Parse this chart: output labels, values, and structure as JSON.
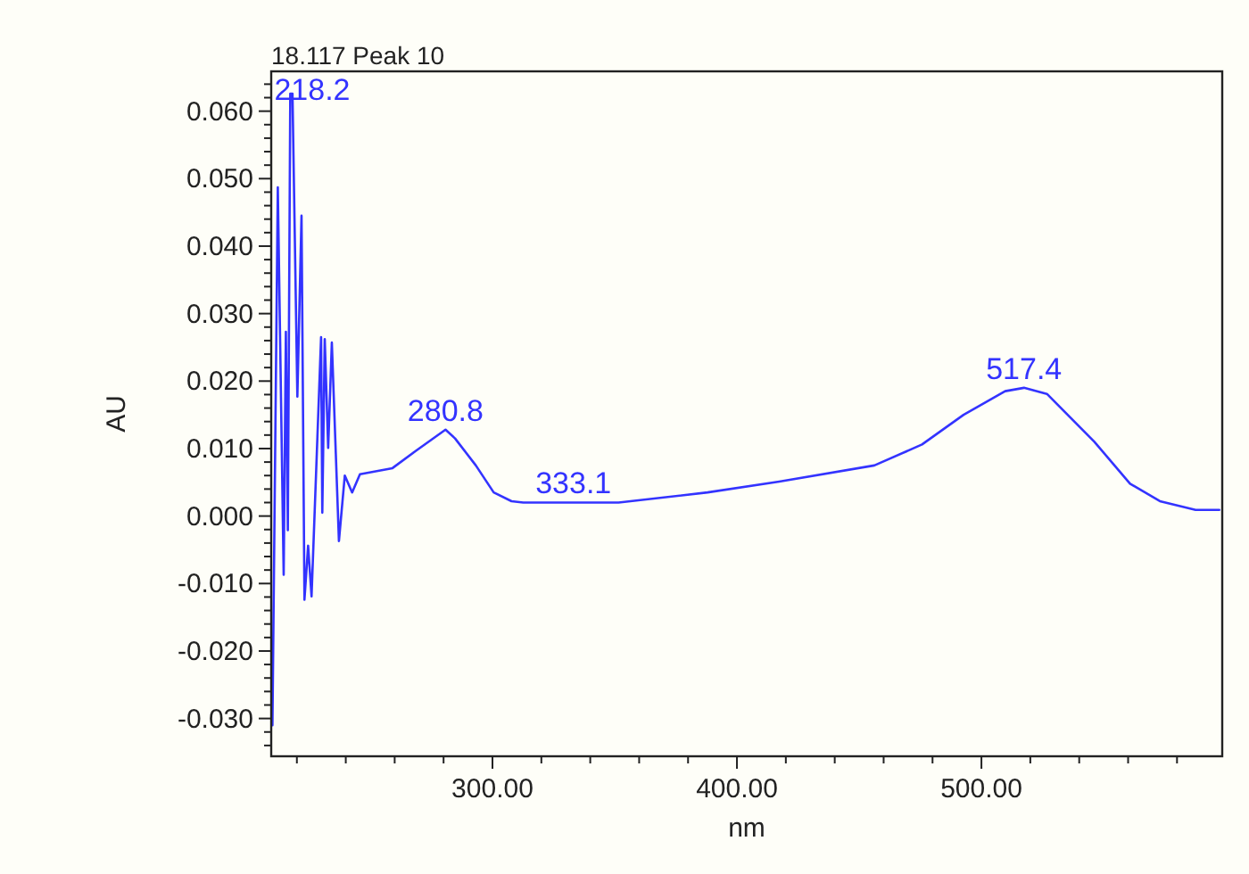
{
  "chart_data": {
    "type": "line",
    "title": "18.117 Peak 10",
    "xlabel": "nm",
    "ylabel": "AU",
    "series": [
      {
        "color": "#3333ff",
        "x": [
          210,
          212.2,
          214.6,
          215.5,
          216.3,
          217.3,
          218.2,
          220.2,
          221.9,
          223.1,
          224.6,
          226.0,
          229.9,
          230.4,
          231.4,
          232.8,
          234.3,
          237.2,
          239.6,
          242.6,
          245.8,
          259.1,
          268.8,
          280.8,
          284.7,
          293.2,
          300.5,
          307.8,
          312.6,
          333.1,
          351.6,
          388,
          417.3,
          456.2,
          475.7,
          492.7,
          509.7,
          517.4,
          526.8,
          546.2,
          560.8,
          573,
          587.6,
          597.3
        ],
        "values": [
          -0.031,
          0.0487,
          -0.0087,
          0.0273,
          -0.0021,
          0.0626,
          0.0626,
          0.0177,
          0.0445,
          -0.0124,
          -0.0044,
          -0.0119,
          0.0265,
          0.0005,
          0.0262,
          0.0101,
          0.0257,
          -0.0037,
          0.006,
          0.0035,
          0.0062,
          0.0071,
          0.0097,
          0.0128,
          0.0115,
          0.0075,
          0.0035,
          0.0022,
          0.002,
          0.002,
          0.002,
          0.0035,
          0.0051,
          0.0075,
          0.0106,
          0.015,
          0.0185,
          0.019,
          0.0181,
          0.011,
          0.0048,
          0.0022,
          0.0009,
          0.0009
        ]
      }
    ],
    "annotations": [
      {
        "text": "218.2",
        "x": 218.2,
        "y": 0.0626
      },
      {
        "text": "280.8",
        "x": 280.8,
        "y": 0.0128
      },
      {
        "text": "333.1",
        "x": 333.1,
        "y": 0.002
      },
      {
        "text": "517.4",
        "x": 517.4,
        "y": 0.019
      }
    ],
    "xlim": [
      209.5,
      598.5
    ],
    "xticks": [
      {
        "value": 300,
        "label": "300.00"
      },
      {
        "value": 400,
        "label": "400.00"
      },
      {
        "value": 500,
        "label": "500.00"
      },
      {
        "value": 220,
        "label": null
      },
      {
        "value": 240,
        "label": null
      },
      {
        "value": 260,
        "label": null
      },
      {
        "value": 280,
        "label": null
      },
      {
        "value": 320,
        "label": null
      },
      {
        "value": 340,
        "label": null
      },
      {
        "value": 360,
        "label": null
      },
      {
        "value": 380,
        "label": null
      },
      {
        "value": 420,
        "label": null
      },
      {
        "value": 440,
        "label": null
      },
      {
        "value": 460,
        "label": null
      },
      {
        "value": 480,
        "label": null
      },
      {
        "value": 520,
        "label": null
      },
      {
        "value": 540,
        "label": null
      },
      {
        "value": 560,
        "label": null
      },
      {
        "value": 580,
        "label": null
      }
    ],
    "ylim": [
      -0.0356,
      0.0659
    ],
    "yticks": [
      {
        "value": 0.06,
        "label": "0.060"
      },
      {
        "value": 0.05,
        "label": "0.050"
      },
      {
        "value": 0.04,
        "label": "0.040"
      },
      {
        "value": 0.03,
        "label": "0.030"
      },
      {
        "value": 0.02,
        "label": "0.020"
      },
      {
        "value": 0.01,
        "label": "0.010"
      },
      {
        "value": 0,
        "label": "0.000"
      },
      {
        "value": -0.01,
        "label": "-0.010"
      },
      {
        "value": -0.02,
        "label": "-0.020"
      },
      {
        "value": -0.03,
        "label": "-0.030"
      },
      {
        "value": -0.034,
        "label": null
      },
      {
        "value": -0.032,
        "label": null
      },
      {
        "value": -0.028,
        "label": null
      },
      {
        "value": -0.026,
        "label": null
      },
      {
        "value": -0.024,
        "label": null
      },
      {
        "value": -0.022,
        "label": null
      },
      {
        "value": -0.018,
        "label": null
      },
      {
        "value": -0.016,
        "label": null
      },
      {
        "value": -0.014,
        "label": null
      },
      {
        "value": -0.012,
        "label": null
      },
      {
        "value": -0.008,
        "label": null
      },
      {
        "value": -0.006,
        "label": null
      },
      {
        "value": -0.004,
        "label": null
      },
      {
        "value": -0.002,
        "label": null
      },
      {
        "value": 0.002,
        "label": null
      },
      {
        "value": 0.004,
        "label": null
      },
      {
        "value": 0.006,
        "label": null
      },
      {
        "value": 0.008,
        "label": null
      },
      {
        "value": 0.012,
        "label": null
      },
      {
        "value": 0.014,
        "label": null
      },
      {
        "value": 0.016,
        "label": null
      },
      {
        "value": 0.018,
        "label": null
      },
      {
        "value": 0.022,
        "label": null
      },
      {
        "value": 0.024,
        "label": null
      },
      {
        "value": 0.026,
        "label": null
      },
      {
        "value": 0.028,
        "label": null
      },
      {
        "value": 0.032,
        "label": null
      },
      {
        "value": 0.034,
        "label": null
      },
      {
        "value": 0.036,
        "label": null
      },
      {
        "value": 0.038,
        "label": null
      },
      {
        "value": 0.042,
        "label": null
      },
      {
        "value": 0.044,
        "label": null
      },
      {
        "value": 0.046,
        "label": null
      },
      {
        "value": 0.048,
        "label": null
      },
      {
        "value": 0.052,
        "label": null
      },
      {
        "value": 0.054,
        "label": null
      },
      {
        "value": 0.056,
        "label": null
      },
      {
        "value": 0.058,
        "label": null
      },
      {
        "value": 0.062,
        "label": null
      },
      {
        "value": 0.064,
        "label": null
      }
    ],
    "tick_labels": true
  }
}
